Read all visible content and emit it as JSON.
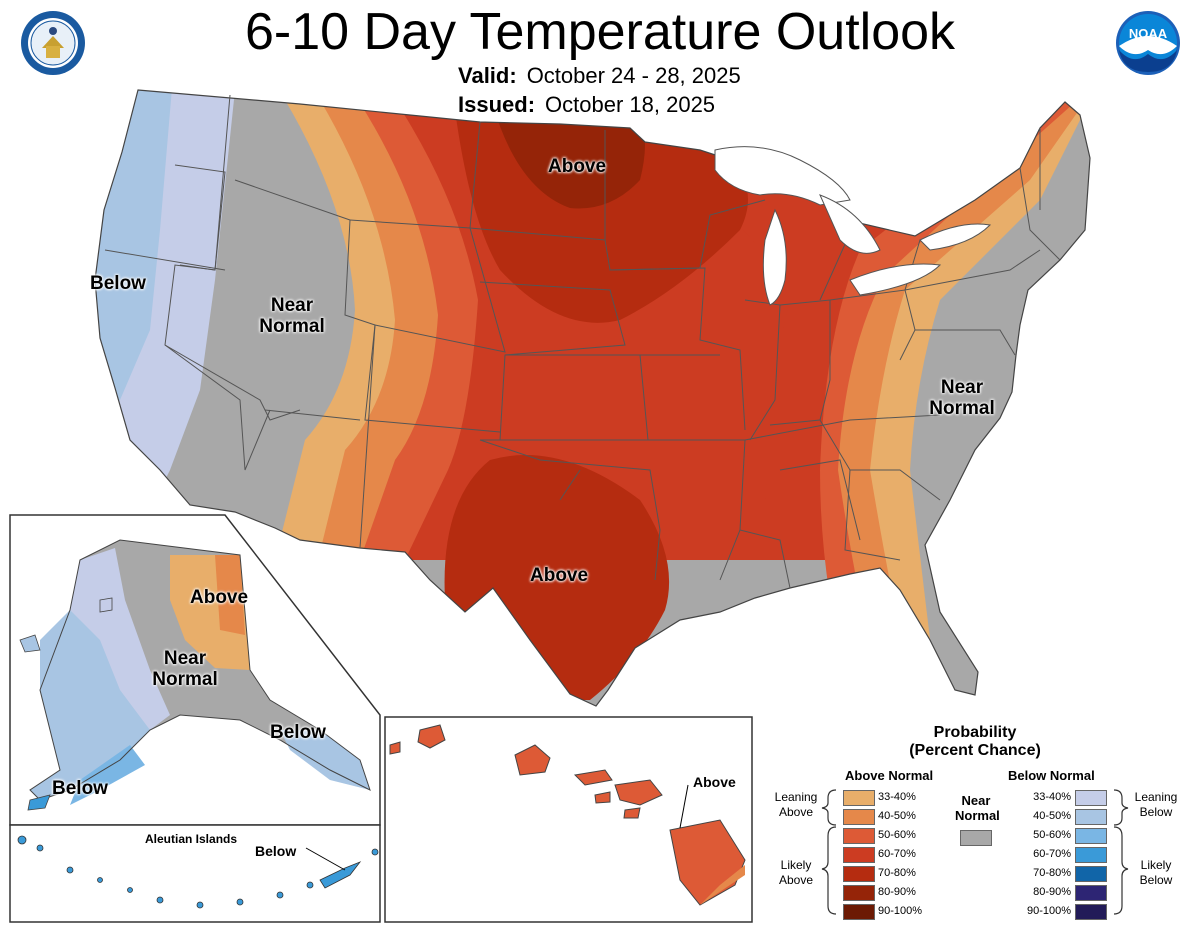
{
  "header": {
    "title": "6-10 Day Temperature Outlook",
    "valid_label": "Valid:",
    "valid_value": "October 24 - 28, 2025",
    "issued_label": "Issued:",
    "issued_value": "October 18, 2025"
  },
  "logos": {
    "left": "commerce-seal",
    "right": "noaa-logo",
    "noaa_text": "NOAA"
  },
  "map_labels": {
    "north_above": "Above",
    "west_below": "Below",
    "west_near_1": "Near",
    "west_near_2": "Normal",
    "east_near_1": "Near",
    "east_near_2": "Normal",
    "south_above": "Above"
  },
  "alaska": {
    "above": "Above",
    "near_1": "Near",
    "near_2": "Normal",
    "below_se": "Below",
    "below_sw": "Below",
    "aleutian_title": "Aleutian Islands",
    "aleutian_below": "Below"
  },
  "hawaii": {
    "above": "Above"
  },
  "legend": {
    "title_1": "Probability",
    "title_2": "(Percent Chance)",
    "above_header": "Above Normal",
    "below_header": "Below Normal",
    "near_1": "Near",
    "near_2": "Normal",
    "leaning_above_1": "Leaning",
    "leaning_above_2": "Above",
    "likely_above_1": "Likely",
    "likely_above_2": "Above",
    "leaning_below_1": "Leaning",
    "leaning_below_2": "Below",
    "likely_below_1": "Likely",
    "likely_below_2": "Below",
    "above_rows": [
      {
        "range": "33-40%",
        "color": "#e8ae6a"
      },
      {
        "range": "40-50%",
        "color": "#e5884a"
      },
      {
        "range": "50-60%",
        "color": "#dd5a36"
      },
      {
        "range": "60-70%",
        "color": "#cc3c22"
      },
      {
        "range": "70-80%",
        "color": "#b52c10"
      },
      {
        "range": "80-90%",
        "color": "#952408"
      },
      {
        "range": "90-100%",
        "color": "#6c1a04"
      }
    ],
    "near_color": "#a8a8a8",
    "below_rows": [
      {
        "range": "33-40%",
        "color": "#c5cde8"
      },
      {
        "range": "40-50%",
        "color": "#a8c5e3"
      },
      {
        "range": "50-60%",
        "color": "#7ab6e4"
      },
      {
        "range": "60-70%",
        "color": "#3a9ad8"
      },
      {
        "range": "70-80%",
        "color": "#1165a8"
      },
      {
        "range": "80-90%",
        "color": "#2d2574"
      },
      {
        "range": "90-100%",
        "color": "#221b58"
      }
    ]
  }
}
